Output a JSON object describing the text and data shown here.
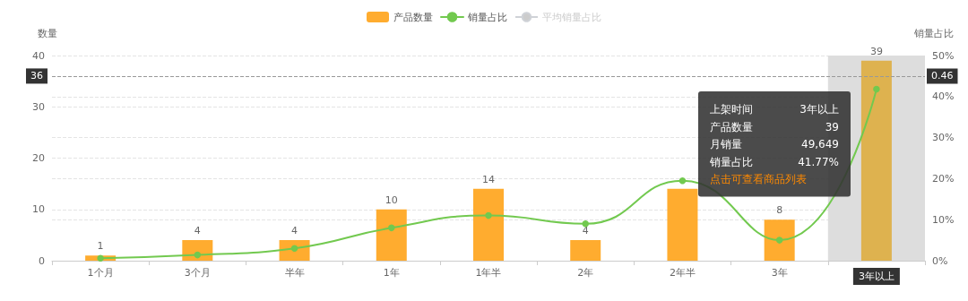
{
  "chart_data": {
    "type": "bar",
    "categories": [
      "1个月",
      "3个月",
      "半年",
      "1年",
      "1年半",
      "2年",
      "2年半",
      "3年",
      "3年以上"
    ],
    "ylabel": "数量",
    "y2label": "销量占比",
    "ylim": [
      0,
      40
    ],
    "yticks": [
      0,
      10,
      20,
      30,
      40
    ],
    "y2lim": [
      0,
      50
    ],
    "y2ticks": [
      {
        "value": 0,
        "label": "0%"
      },
      {
        "value": 10,
        "label": "10%"
      },
      {
        "value": 20,
        "label": "20%"
      },
      {
        "value": 30,
        "label": "30%"
      },
      {
        "value": 40,
        "label": "40%"
      },
      {
        "value": 50,
        "label": "50%"
      }
    ],
    "series": [
      {
        "name": "产品数量",
        "color": "#ffac2f",
        "colors": [
          "#ffac2f",
          "#ffac2f",
          "#ffac2f",
          "#ffac2f",
          "#ffac2f",
          "#ffac2f",
          "#ffac2f",
          "#ffac2f",
          "#deb24f"
        ],
        "values": [
          1,
          4,
          4,
          10,
          14,
          4,
          14,
          8,
          39
        ],
        "value_labels": [
          "1",
          "4",
          "4",
          "10",
          "14",
          "4",
          null,
          "8",
          "39"
        ]
      },
      {
        "name": "销量占比",
        "type": "line",
        "axis": "y2",
        "color": "#72c94f",
        "values": [
          0.6,
          1.4,
          3,
          8,
          11,
          9,
          19.5,
          5,
          41.8
        ]
      },
      {
        "name": "平均销量占比",
        "type": "line",
        "axis": "y2",
        "color": "#cccccc",
        "values": [
          null,
          null,
          null,
          null,
          null,
          null,
          null,
          null,
          null
        ]
      }
    ],
    "ref_lines": [
      {
        "axis": "y",
        "value": 36,
        "label": "36"
      }
    ],
    "bands": [
      {
        "axis": "x",
        "from": "3年以上",
        "to": "3年以上",
        "color": "#dddddd"
      }
    ],
    "annotations": [
      "上架时间",
      "3年以上",
      "产品数量",
      "39",
      "月销量",
      "49,649",
      "销量占比",
      "41.77%",
      "点击可查看商品列表",
      {
        "text": "0.46",
        "y": 36
      }
    ],
    "grid": true,
    "legend": "top",
    "marker": "circle",
    "line_style": "solid"
  }
}
